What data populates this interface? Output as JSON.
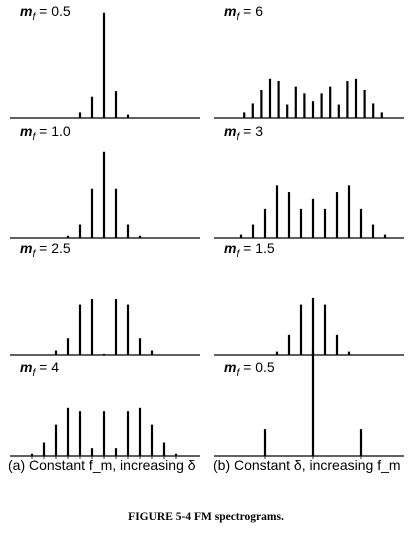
{
  "caption": "FIGURE 5-4   FM spectrograms.",
  "columns": {
    "a": "(a) Constant f_m,  increasing δ",
    "b": "(b) Constant δ,  increasing f_m"
  },
  "chart_data": [
    {
      "type": "bar",
      "column": "a",
      "title": "m_f = 0.5",
      "values": [
        0.05,
        0.19,
        0.94,
        0.24,
        0.03
      ]
    },
    {
      "type": "bar",
      "column": "a",
      "title": "m_f = 1.0",
      "values": [
        0.02,
        0.12,
        0.44,
        0.77,
        0.44,
        0.12,
        0.02
      ]
    },
    {
      "type": "bar",
      "column": "a",
      "title": "m_f = 2.5",
      "values": [
        0.04,
        0.15,
        0.45,
        0.5,
        0.01,
        0.5,
        0.45,
        0.15,
        0.04
      ]
    },
    {
      "type": "bar",
      "column": "a",
      "title": "m_f = 4",
      "values": [
        0.02,
        0.12,
        0.28,
        0.43,
        0.4,
        0.07,
        0.4,
        0.07,
        0.4,
        0.43,
        0.28,
        0.12,
        0.02
      ]
    },
    {
      "type": "bar",
      "column": "b",
      "title": "m_f = 6",
      "values": [
        0.05,
        0.13,
        0.25,
        0.35,
        0.33,
        0.12,
        0.28,
        0.22,
        0.15,
        0.22,
        0.28,
        0.12,
        0.33,
        0.35,
        0.25,
        0.13,
        0.05
      ]
    },
    {
      "type": "bar",
      "column": "b",
      "title": "m_f = 3",
      "values": [
        0.03,
        0.12,
        0.26,
        0.47,
        0.41,
        0.26,
        0.35,
        0.26,
        0.41,
        0.47,
        0.26,
        0.12,
        0.03
      ]
    },
    {
      "type": "bar",
      "column": "b",
      "title": "m_f = 1.5",
      "values": [
        0.03,
        0.18,
        0.45,
        0.51,
        0.45,
        0.18,
        0.03
      ]
    },
    {
      "type": "bar",
      "column": "b",
      "title": "m_f = 0.5",
      "values": [
        0.24,
        0.94,
        0.24
      ]
    }
  ]
}
